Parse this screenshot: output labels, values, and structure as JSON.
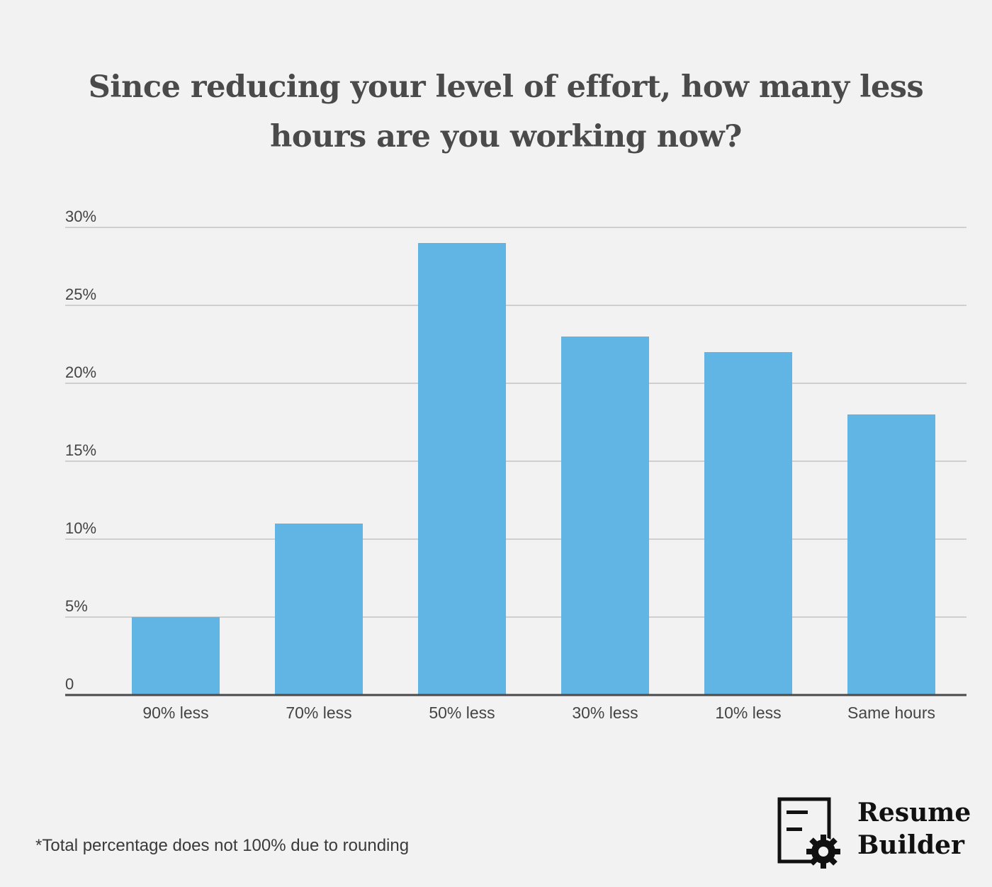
{
  "title": "Since reducing your level of effort, how many less hours are you working now?",
  "footnote": "*Total percentage does not 100% due to rounding",
  "logo": {
    "line1": "Resume",
    "line2": "Builder",
    "icon": "document-gear-icon"
  },
  "colors": {
    "bar": "#60b5e4",
    "grid": "#cfcfcf",
    "axis": "#4a4a4a",
    "text": "#444444",
    "background": "#f2f2f2"
  },
  "chart_data": {
    "type": "bar",
    "title": "Since reducing your level of effort, how many less hours are you working now?",
    "categories": [
      "90% less",
      "70% less",
      "50% less",
      "30% less",
      "10% less",
      "Same hours"
    ],
    "values": [
      5,
      11,
      29,
      23,
      22,
      18
    ],
    "unit": "%",
    "ylim": [
      0,
      30
    ],
    "yticks": [
      0,
      5,
      10,
      15,
      20,
      25,
      30
    ],
    "ytick_labels": [
      "0",
      "5%",
      "10%",
      "15%",
      "20%",
      "25%",
      "30%"
    ],
    "xlabel": "",
    "ylabel": "",
    "grid": true,
    "legend": "none"
  }
}
